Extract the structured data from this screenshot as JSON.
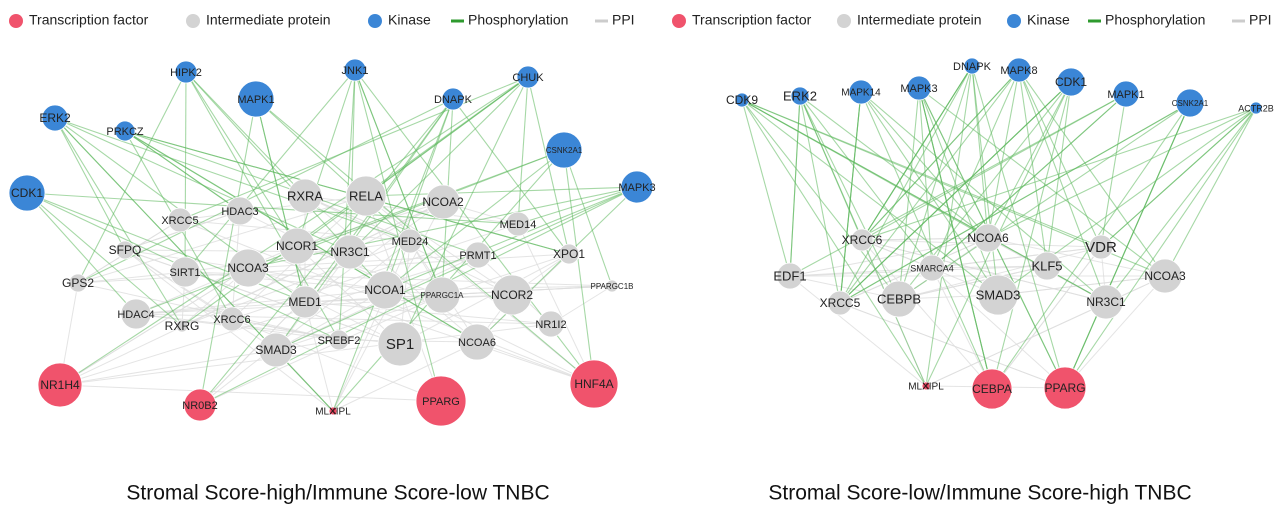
{
  "panels": [
    {
      "legend": [
        {
          "label": "Transcription factor",
          "color": "#f0536c"
        },
        {
          "label": "Intermediate protein",
          "color": "#d3d3d3"
        },
        {
          "label": "Kinase",
          "color": "#3b86d6"
        },
        {
          "label": "Phosphorylation",
          "color": "#2e9a2e"
        },
        {
          "label": "PPI",
          "color": "#cccccc"
        }
      ],
      "nodes": [
        {
          "label": "HIPK2",
          "color": "#3b86d6"
        },
        {
          "label": "MAPK1",
          "color": "#3b86d6"
        },
        {
          "label": "JNK1",
          "color": "#3b86d6"
        },
        {
          "label": "DNAPK",
          "color": "#3b86d6"
        },
        {
          "label": "CHUK",
          "color": "#3b86d6"
        },
        {
          "label": "ERK2",
          "color": "#3b86d6"
        },
        {
          "label": "PRKCZ",
          "color": "#3b86d6"
        },
        {
          "label": "CSNK2A1",
          "color": "#3b86d6"
        },
        {
          "label": "CDK1",
          "color": "#3b86d6"
        },
        {
          "label": "MAPK3",
          "color": "#3b86d6"
        },
        {
          "label": "RXRA",
          "color": "#d3d3d3"
        },
        {
          "label": "RELA",
          "color": "#d3d3d3"
        },
        {
          "label": "NCOA2",
          "color": "#d3d3d3"
        },
        {
          "label": "HDAC3",
          "color": "#d3d3d3"
        },
        {
          "label": "XRCC5",
          "color": "#d3d3d3"
        },
        {
          "label": "MED14",
          "color": "#d3d3d3"
        },
        {
          "label": "SFPQ",
          "color": "#d3d3d3"
        },
        {
          "label": "NCOR1",
          "color": "#d3d3d3"
        },
        {
          "label": "NR3C1",
          "color": "#d3d3d3"
        },
        {
          "label": "MED24",
          "color": "#d3d3d3"
        },
        {
          "label": "PRMT1",
          "color": "#d3d3d3"
        },
        {
          "label": "XPO1",
          "color": "#d3d3d3"
        },
        {
          "label": "GPS2",
          "color": "#d3d3d3"
        },
        {
          "label": "SIRT1",
          "color": "#d3d3d3"
        },
        {
          "label": "NCOA3",
          "color": "#d3d3d3"
        },
        {
          "label": "NCOA1",
          "color": "#d3d3d3"
        },
        {
          "label": "PPARGC1A",
          "color": "#d3d3d3"
        },
        {
          "label": "NCOR2",
          "color": "#d3d3d3"
        },
        {
          "label": "PPARGC1B",
          "color": "#d3d3d3"
        },
        {
          "label": "MED1",
          "color": "#d3d3d3"
        },
        {
          "label": "HDAC4",
          "color": "#d3d3d3"
        },
        {
          "label": "RXRG",
          "color": "#d3d3d3"
        },
        {
          "label": "XRCC6",
          "color": "#d3d3d3"
        },
        {
          "label": "NR1I2",
          "color": "#d3d3d3"
        },
        {
          "label": "SMAD3",
          "color": "#d3d3d3"
        },
        {
          "label": "SREBF2",
          "color": "#d3d3d3"
        },
        {
          "label": "SP1",
          "color": "#d3d3d3"
        },
        {
          "label": "NCOA6",
          "color": "#d3d3d3"
        },
        {
          "label": "NR1H4",
          "color": "#f0536c"
        },
        {
          "label": "NR0B2",
          "color": "#f0536c"
        },
        {
          "label": "MLXIPL",
          "color": "#f0536c"
        },
        {
          "label": "PPARG",
          "color": "#f0536c"
        },
        {
          "label": "HNF4A",
          "color": "#f0536c"
        }
      ],
      "caption": "Stromal Score-high/Immune Score-low TNBC"
    },
    {
      "legend": [
        {
          "label": "Transcription factor",
          "color": "#f0536c"
        },
        {
          "label": "Intermediate protein",
          "color": "#d3d3d3"
        },
        {
          "label": "Kinase",
          "color": "#3b86d6"
        },
        {
          "label": "Phosphorylation",
          "color": "#2e9a2e"
        },
        {
          "label": "PPI",
          "color": "#cccccc"
        }
      ],
      "nodes": [
        {
          "label": "CDK9",
          "color": "#3b86d6"
        },
        {
          "label": "ERK2",
          "color": "#3b86d6"
        },
        {
          "label": "MAPK14",
          "color": "#3b86d6"
        },
        {
          "label": "MAPK3",
          "color": "#3b86d6"
        },
        {
          "label": "DNAPK",
          "color": "#3b86d6"
        },
        {
          "label": "MAPK8",
          "color": "#3b86d6"
        },
        {
          "label": "CDK1",
          "color": "#3b86d6"
        },
        {
          "label": "MAPK1",
          "color": "#3b86d6"
        },
        {
          "label": "CSNK2A1",
          "color": "#3b86d6"
        },
        {
          "label": "ACTR2B",
          "color": "#3b86d6"
        },
        {
          "label": "XRCC6",
          "color": "#d3d3d3"
        },
        {
          "label": "NCOA6",
          "color": "#d3d3d3"
        },
        {
          "label": "VDR",
          "color": "#d3d3d3"
        },
        {
          "label": "EDF1",
          "color": "#d3d3d3"
        },
        {
          "label": "SMARCA4",
          "color": "#d3d3d3"
        },
        {
          "label": "KLF5",
          "color": "#d3d3d3"
        },
        {
          "label": "NCOA3",
          "color": "#d3d3d3"
        },
        {
          "label": "XRCC5",
          "color": "#d3d3d3"
        },
        {
          "label": "CEBPB",
          "color": "#d3d3d3"
        },
        {
          "label": "SMAD3",
          "color": "#d3d3d3"
        },
        {
          "label": "NR3C1",
          "color": "#d3d3d3"
        },
        {
          "label": "MLXIPL",
          "color": "#f0536c"
        },
        {
          "label": "CEBPA",
          "color": "#f0536c"
        },
        {
          "label": "PPARG",
          "color": "#f0536c"
        }
      ],
      "caption": "Stromal Score-low/Immune Score-high TNBC"
    }
  ]
}
